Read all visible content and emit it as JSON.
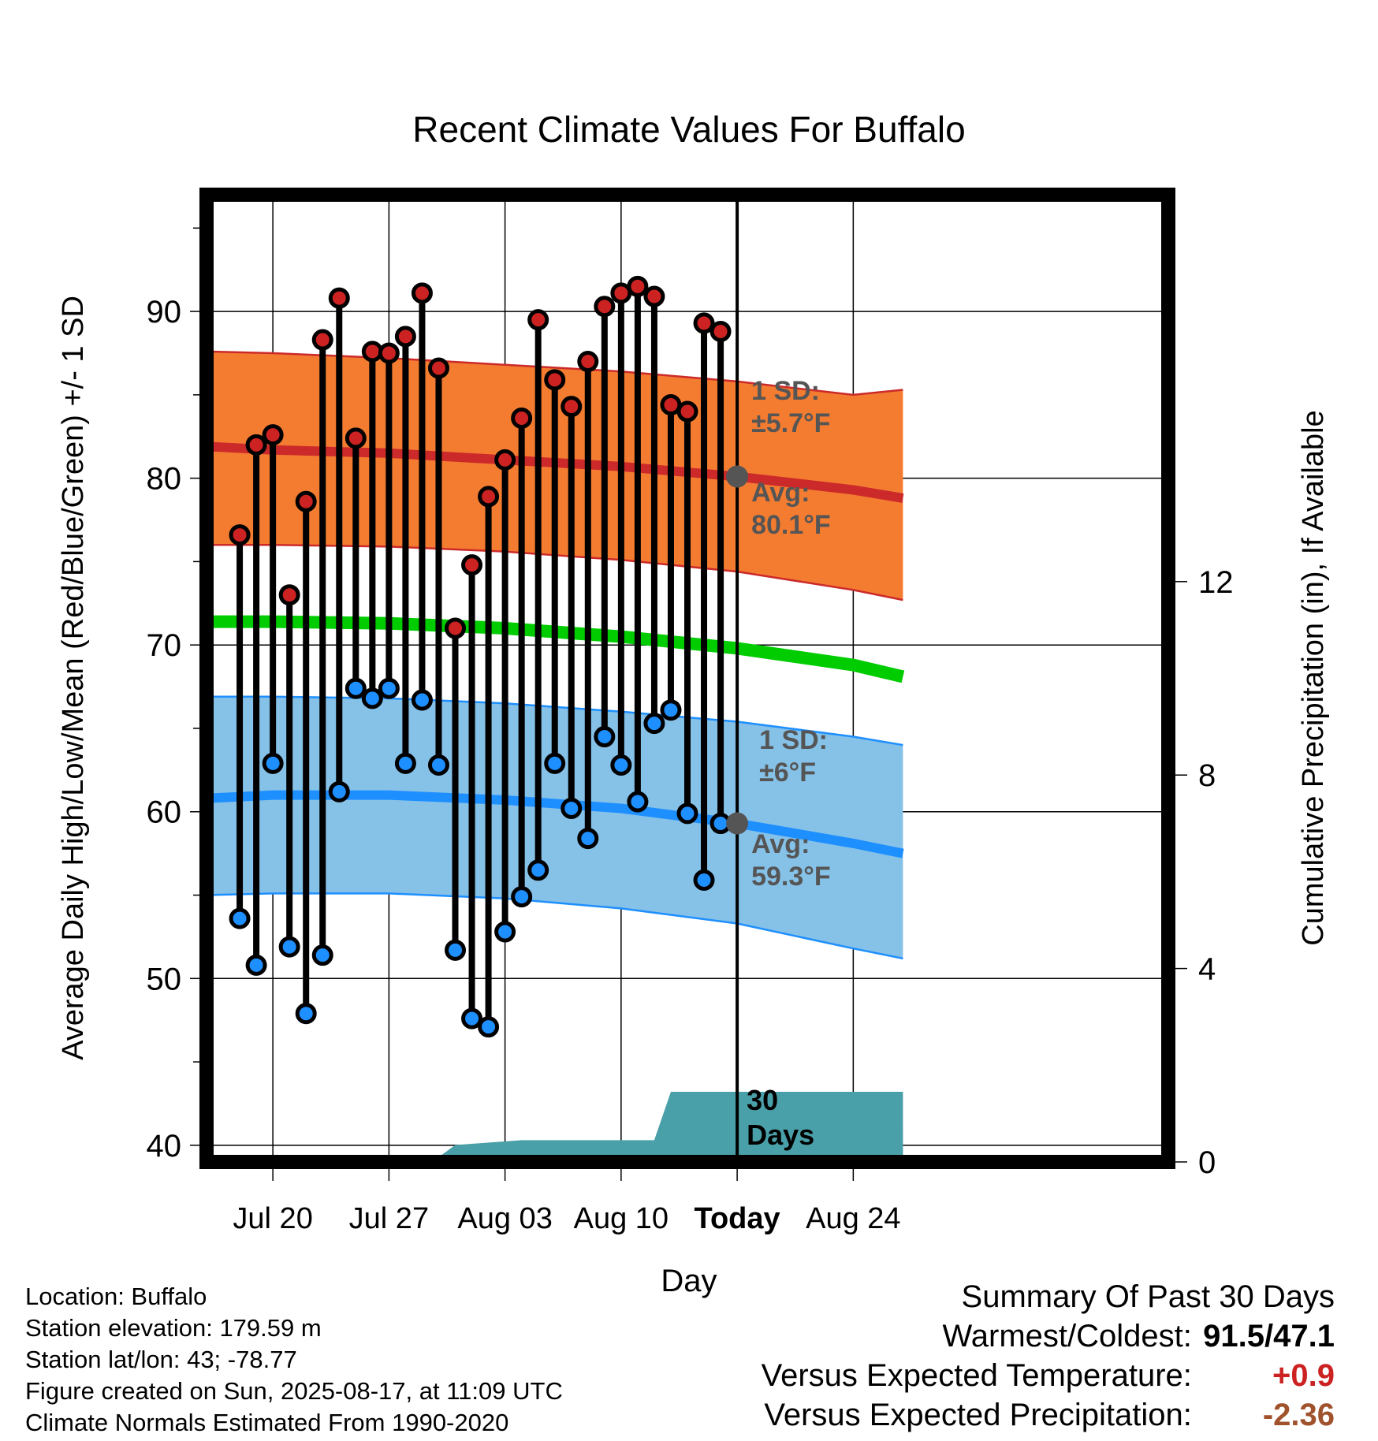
{
  "chart_data": {
    "type": "line",
    "title": "Recent Climate Values For Buffalo",
    "xlabel": "Day",
    "ylabel": "Average Daily High/Low/Mean (Red/Blue/Green) +/- 1 SD",
    "y2label": "Cumulative Precipitation (in), If Available",
    "ylim": [
      39,
      97
    ],
    "y_ticks": [
      40,
      50,
      60,
      70,
      80,
      90
    ],
    "y2lim": [
      0,
      20
    ],
    "y2_ticks": [
      0,
      4,
      8,
      12
    ],
    "x_range_days": [
      -4,
      54
    ],
    "x_ticks": [
      {
        "day": 0,
        "label": "Jul 20"
      },
      {
        "day": 7,
        "label": "Jul 27"
      },
      {
        "day": 14,
        "label": "Aug 03"
      },
      {
        "day": 21,
        "label": "Aug 10"
      },
      {
        "day": 28,
        "label": "Today"
      },
      {
        "day": 35,
        "label": "Aug 24"
      }
    ],
    "today_day": 28,
    "days": [
      -2,
      -1,
      0,
      1,
      2,
      3,
      4,
      5,
      6,
      7,
      8,
      9,
      10,
      11,
      12,
      13,
      14,
      15,
      16,
      17,
      18,
      19,
      20,
      21,
      22,
      23,
      24,
      25,
      26,
      27
    ],
    "observed_high": [
      76.6,
      82.0,
      82.6,
      73.0,
      78.6,
      88.3,
      90.8,
      82.4,
      87.6,
      87.5,
      88.5,
      91.1,
      86.6,
      71.0,
      74.8,
      78.9,
      81.1,
      83.6,
      89.5,
      85.9,
      84.3,
      87.0,
      90.3,
      91.1,
      91.5,
      90.9,
      84.4,
      84.0,
      89.3,
      88.8
    ],
    "observed_low": [
      53.6,
      50.8,
      62.9,
      51.9,
      47.9,
      51.4,
      61.2,
      67.4,
      66.8,
      67.4,
      62.9,
      66.7,
      62.8,
      51.7,
      47.6,
      47.1,
      52.8,
      54.9,
      56.5,
      62.9,
      60.2,
      58.4,
      64.5,
      62.8,
      60.6,
      65.3,
      66.1,
      59.9,
      55.9,
      59.3
    ],
    "normal_high": {
      "days": [
        -4,
        0,
        7,
        14,
        21,
        28,
        35,
        38
      ],
      "avg": [
        81.9,
        81.7,
        81.5,
        81.1,
        80.7,
        80.1,
        79.3,
        78.8
      ],
      "upper": [
        87.6,
        87.5,
        87.2,
        86.8,
        86.4,
        85.8,
        85.0,
        85.3
      ],
      "lower": [
        76.0,
        76.0,
        75.9,
        75.6,
        75.1,
        74.4,
        73.3,
        72.7
      ]
    },
    "normal_mean": {
      "days": [
        -4,
        0,
        7,
        14,
        21,
        28,
        35,
        38
      ],
      "avg": [
        71.4,
        71.4,
        71.3,
        71.0,
        70.5,
        69.8,
        68.8,
        68.1
      ]
    },
    "normal_low": {
      "days": [
        -4,
        0,
        7,
        14,
        21,
        28,
        35,
        38
      ],
      "avg": [
        60.8,
        61.0,
        61.0,
        60.7,
        60.2,
        59.3,
        58.1,
        57.5
      ],
      "upper": [
        66.9,
        66.9,
        66.8,
        66.5,
        66.0,
        65.4,
        64.5,
        64.0
      ],
      "lower": [
        55.0,
        55.1,
        55.1,
        54.8,
        54.2,
        53.3,
        51.8,
        51.2
      ]
    },
    "precip": {
      "days": [
        -4,
        6,
        7,
        10,
        11,
        15,
        21,
        23,
        24,
        28,
        38
      ],
      "cumulative": [
        0.0,
        0.0,
        0.1,
        0.1,
        0.35,
        0.45,
        0.45,
        0.45,
        1.45,
        1.45,
        1.45
      ]
    },
    "annotations": {
      "high_sd_label": "1 SD:",
      "high_sd_value": "±5.7°F",
      "high_avg_label": "Avg:",
      "high_avg_value": "80.1°F",
      "low_sd_label": "1 SD:",
      "low_sd_value": "±6°F",
      "low_avg_label": "Avg:",
      "low_avg_value": "59.3°F",
      "days_label_1": "30",
      "days_label_2": "Days"
    },
    "colors": {
      "high_band": "#f47c30",
      "high_line": "#cc2a2a",
      "high_marker": "#cc2222",
      "mean_line": "#00cc00",
      "low_band": "#86c1e8",
      "low_line": "#1e8fff",
      "low_marker": "#1e8fff",
      "precip_fill": "#4aa0a8",
      "annotation": "#555555"
    }
  },
  "station_info": {
    "location": "Location: Buffalo",
    "elevation": "Station elevation: 179.59 m",
    "latlon": "Station lat/lon: 43; -78.77",
    "created": "Figure created on Sun, 2025-08-17, at 11:09 UTC",
    "normals": "Climate Normals Estimated From 1990-2020"
  },
  "summary": {
    "title": "Summary Of Past 30 Days",
    "warmest_label": "Warmest/Coldest:",
    "warmest_value": "91.5/47.1",
    "temp_label": "Versus Expected Temperature:",
    "temp_value": "+0.9",
    "precip_label": "Versus Expected Precipitation:",
    "precip_value": "-2.36"
  }
}
